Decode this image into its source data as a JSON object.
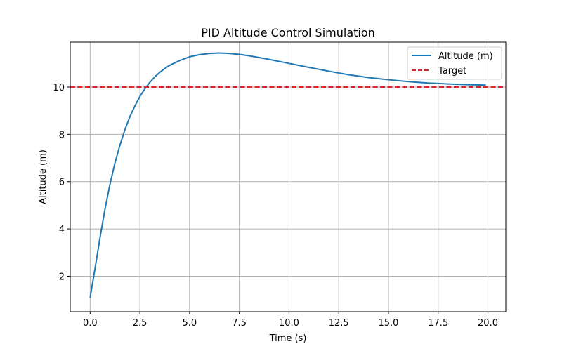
{
  "chart_data": {
    "type": "line",
    "title": "PID Altitude Control Simulation",
    "xlabel": "Time (s)",
    "ylabel": "Altitude (m)",
    "xlim": [
      -1.0,
      20.9
    ],
    "ylim": [
      0.5,
      11.9
    ],
    "xticks": [
      0.0,
      2.5,
      5.0,
      7.5,
      10.0,
      12.5,
      15.0,
      17.5,
      20.0
    ],
    "xtick_labels": [
      "0.0",
      "2.5",
      "5.0",
      "7.5",
      "10.0",
      "12.5",
      "15.0",
      "17.5",
      "20.0"
    ],
    "yticks": [
      2,
      4,
      6,
      8,
      10
    ],
    "ytick_labels": [
      "2",
      "4",
      "6",
      "8",
      "10"
    ],
    "grid": true,
    "legend_position": "top-right",
    "series": [
      {
        "name": "Altitude (m)",
        "color": "#1f77b4",
        "style": "solid",
        "x": [
          0,
          0.25,
          0.5,
          0.75,
          1.0,
          1.25,
          1.5,
          1.75,
          2.0,
          2.25,
          2.5,
          2.75,
          3.0,
          3.25,
          3.5,
          3.75,
          4.0,
          4.5,
          5.0,
          5.5,
          6.0,
          6.5,
          7.0,
          7.5,
          8.0,
          9.0,
          10.0,
          11.0,
          12.0,
          13.0,
          14.0,
          15.0,
          16.0,
          17.0,
          18.0,
          19.0,
          19.9
        ],
        "y": [
          1.1,
          2.35,
          3.65,
          4.85,
          5.9,
          6.8,
          7.55,
          8.2,
          8.75,
          9.2,
          9.6,
          9.92,
          10.2,
          10.43,
          10.62,
          10.78,
          10.92,
          11.12,
          11.28,
          11.37,
          11.42,
          11.44,
          11.42,
          11.38,
          11.32,
          11.17,
          11.0,
          10.83,
          10.67,
          10.52,
          10.4,
          10.31,
          10.23,
          10.17,
          10.13,
          10.1,
          10.08
        ]
      },
      {
        "name": "Target",
        "color": "#d62728",
        "style": "dashed",
        "x": [
          -1.0,
          20.9
        ],
        "y": [
          10,
          10
        ]
      }
    ]
  }
}
